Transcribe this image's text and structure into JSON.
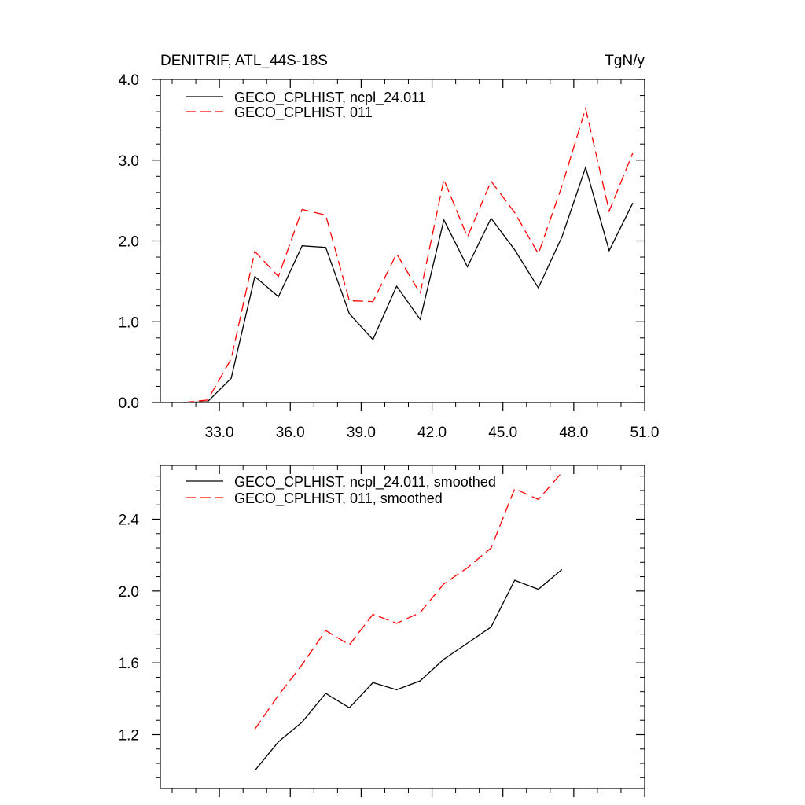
{
  "chart_data": [
    {
      "type": "line",
      "title": "DENITRIF, ATL_44S-18S",
      "units": "TgN/y",
      "xlim": [
        30.5,
        51.0
      ],
      "ylim": [
        0.0,
        4.0
      ],
      "xticks": [
        33.0,
        36.0,
        39.0,
        42.0,
        45.0,
        48.0,
        51.0
      ],
      "xtick_labels": [
        "33.0",
        "36.0",
        "39.0",
        "42.0",
        "45.0",
        "48.0",
        "51.0"
      ],
      "yticks": [
        0.0,
        1.0,
        2.0,
        3.0,
        4.0
      ],
      "ytick_labels": [
        "0.0",
        "1.0",
        "2.0",
        "3.0",
        "4.0"
      ],
      "legend_position": "top-left",
      "x": [
        31.5,
        32.5,
        33.5,
        34.5,
        35.5,
        36.5,
        37.5,
        38.5,
        39.5,
        40.5,
        41.5,
        42.5,
        43.5,
        44.5,
        45.5,
        46.5,
        47.5,
        48.5,
        49.5,
        50.5
      ],
      "series": [
        {
          "name": "GECO_CPLHIST, ncpl_24.011",
          "color": "#000000",
          "dash": "solid",
          "values": [
            0.0,
            0.01,
            0.3,
            1.56,
            1.31,
            1.94,
            1.92,
            1.1,
            0.78,
            1.44,
            1.03,
            2.26,
            1.68,
            2.28,
            1.89,
            1.42,
            2.05,
            2.91,
            1.88,
            2.47
          ]
        },
        {
          "name": "GECO_CPLHIST, 011",
          "color": "#ff0000",
          "dash": "dashed",
          "values": [
            0.0,
            0.03,
            0.54,
            1.87,
            1.56,
            2.39,
            2.32,
            1.26,
            1.25,
            1.84,
            1.35,
            2.76,
            2.05,
            2.74,
            2.35,
            1.84,
            2.68,
            3.64,
            2.37,
            3.09
          ]
        }
      ]
    },
    {
      "type": "line",
      "xlim": [
        30.5,
        51.0
      ],
      "ylim": [
        0.9,
        2.7
      ],
      "xticks": [
        33.0,
        36.0,
        39.0,
        42.0,
        45.0,
        48.0,
        51.0
      ],
      "yticks": [
        1.2,
        1.6,
        2.0,
        2.4
      ],
      "ytick_labels": [
        "1.2",
        "1.6",
        "2.0",
        "2.4"
      ],
      "legend_position": "top-left",
      "x": [
        34.5,
        35.5,
        36.5,
        37.5,
        38.5,
        39.5,
        40.5,
        41.5,
        42.5,
        43.5,
        44.5,
        45.5,
        46.5,
        47.5
      ],
      "series": [
        {
          "name": "GECO_CPLHIST, ncpl_24.011, smoothed",
          "color": "#000000",
          "dash": "solid",
          "values": [
            1.0,
            1.16,
            1.27,
            1.43,
            1.35,
            1.49,
            1.45,
            1.5,
            1.62,
            1.71,
            1.8,
            2.06,
            2.01,
            2.12
          ]
        },
        {
          "name": "GECO_CPLHIST, 011, smoothed",
          "color": "#ff0000",
          "dash": "dashed",
          "values": [
            1.23,
            1.42,
            1.59,
            1.78,
            1.7,
            1.87,
            1.82,
            1.88,
            2.04,
            2.13,
            2.24,
            2.57,
            2.51,
            2.66
          ]
        }
      ]
    }
  ]
}
